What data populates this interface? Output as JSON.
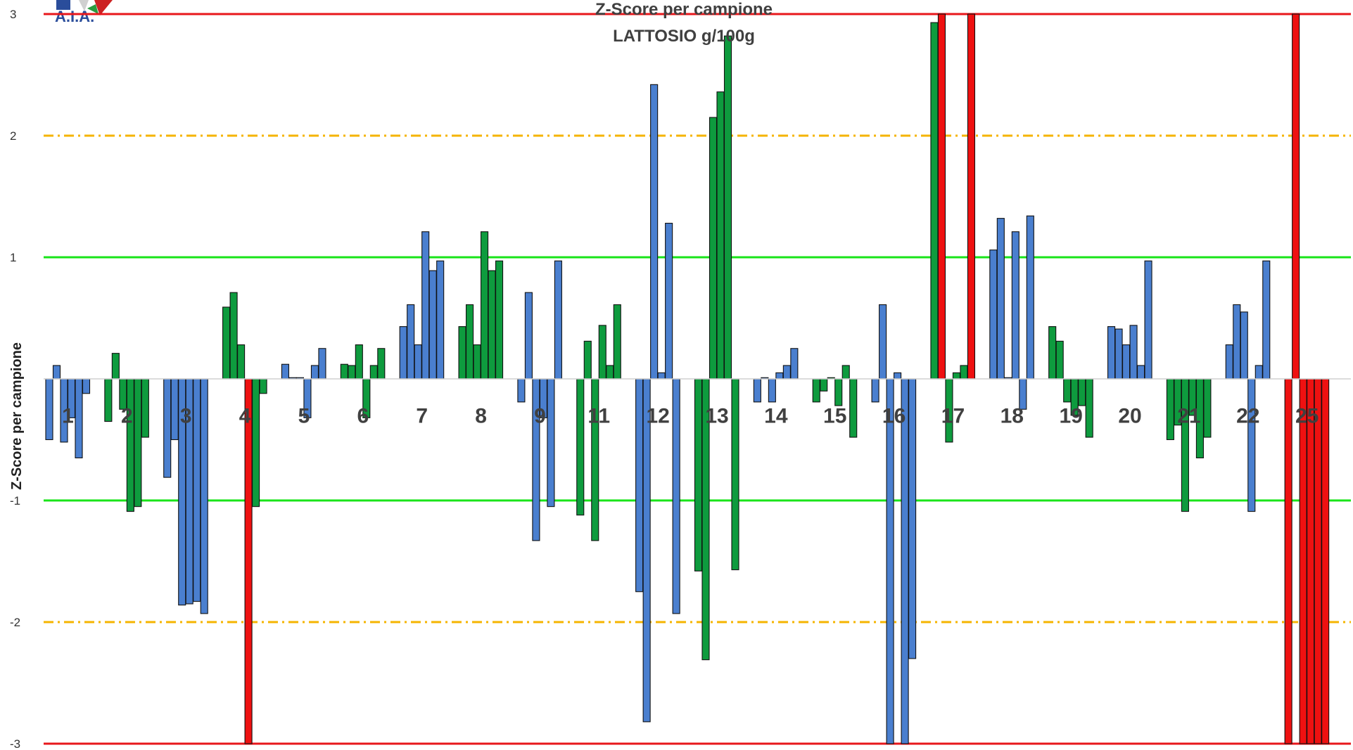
{
  "chart_data": {
    "type": "bar",
    "title": "Z-Score per campione",
    "subtitle": "LATTOSIO g/100g",
    "ylabel": "Z-Score per campione",
    "xlabel": "",
    "ylim": [
      -3,
      3
    ],
    "yticks": [
      "3",
      "2",
      "1",
      "",
      "-1",
      "-2",
      "-3"
    ],
    "grid": false,
    "limit_lines": [
      {
        "value": 3,
        "style": "solid",
        "color": "#e8171b"
      },
      {
        "value": 2,
        "style": "dashdot",
        "color": "#f5b400"
      },
      {
        "value": 1,
        "style": "solid",
        "color": "#19e419"
      },
      {
        "value": -1,
        "style": "solid",
        "color": "#19e419"
      },
      {
        "value": -2,
        "style": "dashdot",
        "color": "#f5b400"
      },
      {
        "value": -3,
        "style": "solid",
        "color": "#e8171b"
      }
    ],
    "colors": {
      "blue": "#4a7fcf",
      "green": "#0e9b3e",
      "red": "#ee1111",
      "border": "#111111"
    },
    "categories": [
      "1",
      "2",
      "3",
      "4",
      "5",
      "6",
      "7",
      "8",
      "9",
      "11",
      "12",
      "13",
      "14",
      "15",
      "16",
      "17",
      "18",
      "19",
      "20",
      "21",
      "22",
      "25"
    ],
    "groups": [
      {
        "label": "1",
        "color": "blue",
        "values": [
          -0.5,
          0.11,
          -0.52,
          -0.32,
          -0.65,
          -0.12
        ]
      },
      {
        "label": "2",
        "color": "green",
        "values": [
          -0.35,
          0.21,
          -0.25,
          -1.09,
          -1.05,
          -0.48
        ]
      },
      {
        "label": "3",
        "color": "blue",
        "values": [
          -0.81,
          -0.5,
          -1.86,
          -1.85,
          -1.83,
          -1.93
        ]
      },
      {
        "label": "4",
        "color": "green",
        "values": [
          0.59,
          0.71,
          0.28,
          -3.0,
          -1.05,
          -0.12
        ],
        "red": [
          3
        ]
      },
      {
        "label": "5",
        "color": "blue",
        "values": [
          0.12,
          0.01,
          0.01,
          -0.32,
          0.11,
          0.25
        ]
      },
      {
        "label": "6",
        "color": "green",
        "values": [
          0.12,
          0.11,
          0.28,
          -0.32,
          0.11,
          0.25
        ]
      },
      {
        "label": "7",
        "color": "blue",
        "values": [
          0.43,
          0.61,
          0.28,
          1.21,
          0.89,
          0.97
        ]
      },
      {
        "label": "8",
        "color": "green",
        "values": [
          0.43,
          0.61,
          0.28,
          1.21,
          0.89,
          0.97
        ]
      },
      {
        "label": "9",
        "color": "blue",
        "values": [
          -0.19,
          0.71,
          -1.33,
          -0.32,
          -1.05,
          0.97
        ]
      },
      {
        "label": "11",
        "color": "green",
        "values": [
          -1.12,
          0.31,
          -1.33,
          0.44,
          0.11,
          0.61
        ]
      },
      {
        "label": "12",
        "color": "blue",
        "values": [
          -1.75,
          -2.82,
          2.42,
          0.05,
          1.28,
          -1.93
        ]
      },
      {
        "label": "13",
        "color": "green",
        "values": [
          -1.58,
          -2.31,
          2.15,
          2.36,
          2.82,
          -1.57
        ]
      },
      {
        "label": "14",
        "color": "blue",
        "values": [
          -0.19,
          0.01,
          -0.19,
          0.05,
          0.11,
          0.25
        ]
      },
      {
        "label": "15",
        "color": "green",
        "values": [
          -0.19,
          -0.1,
          0.01,
          -0.22,
          0.11,
          -0.48
        ]
      },
      {
        "label": "16",
        "color": "blue",
        "values": [
          -0.19,
          0.61,
          -3.0,
          0.05,
          -3.0,
          -2.3
        ]
      },
      {
        "label": "17",
        "color": "green",
        "values": [
          2.93,
          3.0,
          -0.52,
          0.05,
          0.11,
          3.0
        ],
        "red": [
          1,
          5
        ]
      },
      {
        "label": "18",
        "color": "blue",
        "values": [
          1.06,
          1.32,
          0.01,
          1.21,
          -0.25,
          1.34
        ]
      },
      {
        "label": "19",
        "color": "green",
        "values": [
          0.43,
          0.31,
          -0.19,
          -0.3,
          -0.22,
          -0.48
        ]
      },
      {
        "label": "20",
        "color": "blue",
        "values": [
          0.43,
          0.41,
          0.28,
          0.44,
          0.11,
          0.97
        ]
      },
      {
        "label": "21",
        "color": "green",
        "values": [
          -0.5,
          -0.38,
          -1.09,
          -0.3,
          -0.65,
          -0.48
        ]
      },
      {
        "label": "22",
        "color": "blue",
        "values": [
          0.28,
          0.61,
          0.55,
          -1.09,
          0.11,
          0.97
        ]
      },
      {
        "label": "25",
        "color": "red",
        "values": [
          -3.0,
          3.0,
          -3.0,
          -3.0,
          -3.0,
          -3.0
        ]
      }
    ]
  }
}
